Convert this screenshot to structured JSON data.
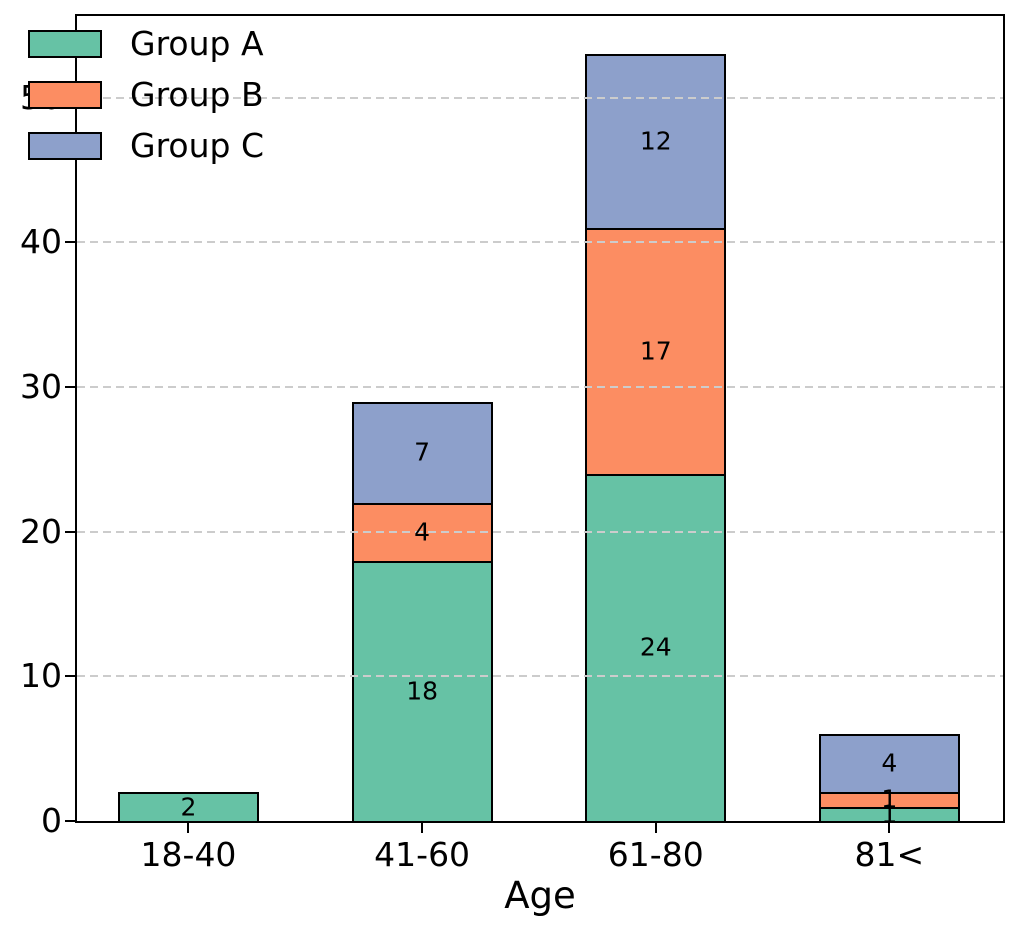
{
  "chart_data": {
    "type": "bar",
    "stacked": true,
    "title": "",
    "xlabel": "Age",
    "ylabel": "",
    "categories": [
      "18-40",
      "41-60",
      "61-80",
      "81<"
    ],
    "series": [
      {
        "name": "Group A",
        "color": "#66c2a5",
        "values": [
          2,
          18,
          24,
          1
        ]
      },
      {
        "name": "Group B",
        "color": "#fc8d62",
        "values": [
          0,
          4,
          17,
          1
        ]
      },
      {
        "name": "Group C",
        "color": "#8da0cb",
        "values": [
          0,
          7,
          12,
          4
        ]
      }
    ],
    "segment_labels_visible": true,
    "bar_totals": [
      2,
      29,
      53,
      6
    ],
    "yticks": [
      0,
      10,
      20,
      30,
      40,
      50
    ],
    "ylim": [
      0,
      55.65
    ],
    "grid": "horizontal-dashed",
    "grid_color": "#cccccc",
    "grid_above_bars": true,
    "bar_edge_color": "#000000",
    "text_color": "#000000",
    "legend_position": "upper-left",
    "legend_frame": false
  }
}
